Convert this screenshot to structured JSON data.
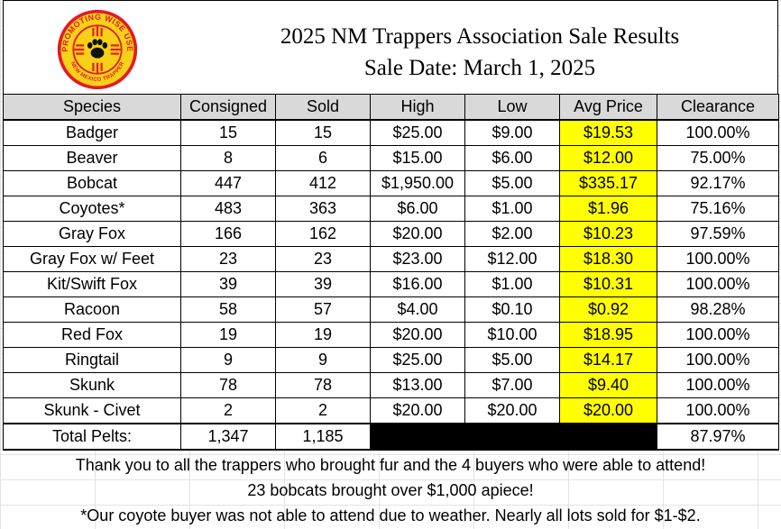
{
  "header": {
    "title": "2025 NM Trappers Association Sale Results",
    "sale_date": "Sale Date: March 1, 2025",
    "logo": {
      "top_text": "PROMOTING WISE USE",
      "bottom_text": "NEW MEXICO TRAPPER",
      "icon": "paw-zia-icon",
      "colors": {
        "ring": "#e31b23",
        "field": "#f7d117",
        "accent": "#111111"
      }
    }
  },
  "table": {
    "columns": [
      "Species",
      "Consigned",
      "Sold",
      "High",
      "Low",
      "Avg Price",
      "Clearance"
    ],
    "rows": [
      {
        "species": "Badger",
        "consigned": "15",
        "sold": "15",
        "high": "$25.00",
        "low": "$9.00",
        "avg": "$19.53",
        "clearance": "100.00%"
      },
      {
        "species": "Beaver",
        "consigned": "8",
        "sold": "6",
        "high": "$15.00",
        "low": "$6.00",
        "avg": "$12.00",
        "clearance": "75.00%"
      },
      {
        "species": "Bobcat",
        "consigned": "447",
        "sold": "412",
        "high": "$1,950.00",
        "low": "$5.00",
        "avg": "$335.17",
        "clearance": "92.17%"
      },
      {
        "species": "Coyotes*",
        "consigned": "483",
        "sold": "363",
        "high": "$6.00",
        "low": "$1.00",
        "avg": "$1.96",
        "clearance": "75.16%"
      },
      {
        "species": "Gray Fox",
        "consigned": "166",
        "sold": "162",
        "high": "$20.00",
        "low": "$2.00",
        "avg": "$10.23",
        "clearance": "97.59%"
      },
      {
        "species": "Gray Fox w/ Feet",
        "consigned": "23",
        "sold": "23",
        "high": "$23.00",
        "low": "$12.00",
        "avg": "$18.30",
        "clearance": "100.00%"
      },
      {
        "species": "Kit/Swift Fox",
        "consigned": "39",
        "sold": "39",
        "high": "$16.00",
        "low": "$1.00",
        "avg": "$10.31",
        "clearance": "100.00%"
      },
      {
        "species": "Racoon",
        "consigned": "58",
        "sold": "57",
        "high": "$4.00",
        "low": "$0.10",
        "avg": "$0.92",
        "clearance": "98.28%"
      },
      {
        "species": "Red Fox",
        "consigned": "19",
        "sold": "19",
        "high": "$20.00",
        "low": "$10.00",
        "avg": "$18.95",
        "clearance": "100.00%"
      },
      {
        "species": "Ringtail",
        "consigned": "9",
        "sold": "9",
        "high": "$25.00",
        "low": "$5.00",
        "avg": "$14.17",
        "clearance": "100.00%"
      },
      {
        "species": "Skunk",
        "consigned": "78",
        "sold": "78",
        "high": "$13.00",
        "low": "$7.00",
        "avg": "$9.40",
        "clearance": "100.00%"
      },
      {
        "species": "Skunk - Civet",
        "consigned": "2",
        "sold": "2",
        "high": "$20.00",
        "low": "$20.00",
        "avg": "$20.00",
        "clearance": "100.00%"
      }
    ],
    "total": {
      "label": "Total Pelts:",
      "consigned": "1,347",
      "sold": "1,185",
      "clearance": "87.97%"
    },
    "colors": {
      "header_bg": "#d9d9d9",
      "avg_highlight": "#ffff00",
      "blackout": "#000000"
    }
  },
  "notes": [
    "Thank you to all the trappers who brought fur and the 4 buyers who were able to attend!",
    "23 bobcats brought over $1,000 apiece!",
    "*Our coyote buyer was not able to attend due to weather.  Nearly all lots sold for $1-$2."
  ]
}
